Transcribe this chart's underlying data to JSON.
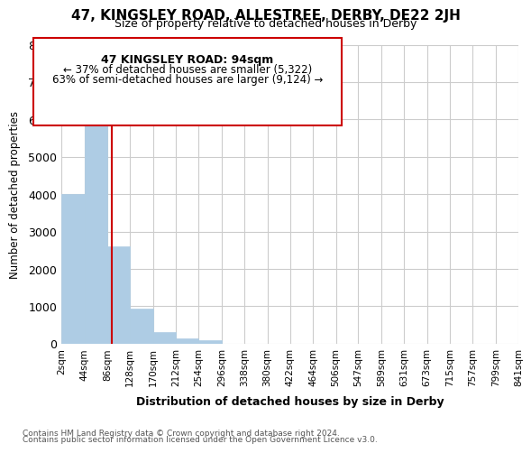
{
  "title": "47, KINGSLEY ROAD, ALLESTREE, DERBY, DE22 2JH",
  "subtitle": "Size of property relative to detached houses in Derby",
  "xlabel": "Distribution of detached houses by size in Derby",
  "ylabel": "Number of detached properties",
  "bar_color": "#aecce4",
  "bar_edge_color": "#aecce4",
  "vline_color": "#cc0000",
  "vline_x": 94,
  "bin_edges": [
    2,
    44,
    86,
    128,
    170,
    212,
    254,
    296,
    338,
    380,
    422,
    464,
    506,
    547,
    589,
    631,
    673,
    715,
    757,
    799,
    841
  ],
  "bar_heights": [
    4000,
    6600,
    2600,
    950,
    320,
    150,
    100,
    0,
    0,
    0,
    0,
    0,
    0,
    0,
    0,
    0,
    0,
    0,
    0,
    0
  ],
  "tick_labels": [
    "2sqm",
    "44sqm",
    "86sqm",
    "128sqm",
    "170sqm",
    "212sqm",
    "254sqm",
    "296sqm",
    "338sqm",
    "380sqm",
    "422sqm",
    "464sqm",
    "506sqm",
    "547sqm",
    "589sqm",
    "631sqm",
    "673sqm",
    "715sqm",
    "757sqm",
    "799sqm",
    "841sqm"
  ],
  "ylim": [
    0,
    8000
  ],
  "yticks": [
    0,
    1000,
    2000,
    3000,
    4000,
    5000,
    6000,
    7000,
    8000
  ],
  "annotation_title": "47 KINGSLEY ROAD: 94sqm",
  "annotation_line1": "← 37% of detached houses are smaller (5,322)",
  "annotation_line2": "63% of semi-detached houses are larger (9,124) →",
  "annotation_box_color": "#ffffff",
  "annotation_box_edge": "#cc0000",
  "footer_line1": "Contains HM Land Registry data © Crown copyright and database right 2024.",
  "footer_line2": "Contains public sector information licensed under the Open Government Licence v3.0.",
  "bg_color": "#ffffff",
  "grid_color": "#cccccc"
}
